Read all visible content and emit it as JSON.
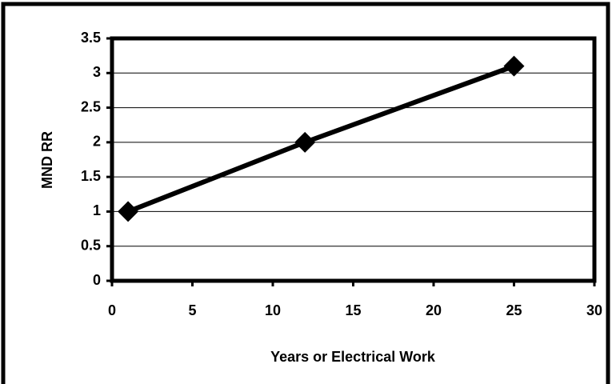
{
  "chart_data": {
    "type": "line",
    "x": [
      1,
      12,
      25
    ],
    "values": [
      1,
      2,
      3.1
    ],
    "color": "#000000",
    "xlim": [
      0,
      30
    ],
    "xticks": [
      0,
      5,
      10,
      15,
      20,
      25,
      30
    ],
    "ylim": [
      0,
      3.5
    ],
    "yticks": [
      0,
      0.5,
      1,
      1.5,
      2,
      2.5,
      3,
      3.5
    ],
    "grid": true,
    "x_label": "Years or Electrical Work",
    "y_label": "MND RR"
  }
}
